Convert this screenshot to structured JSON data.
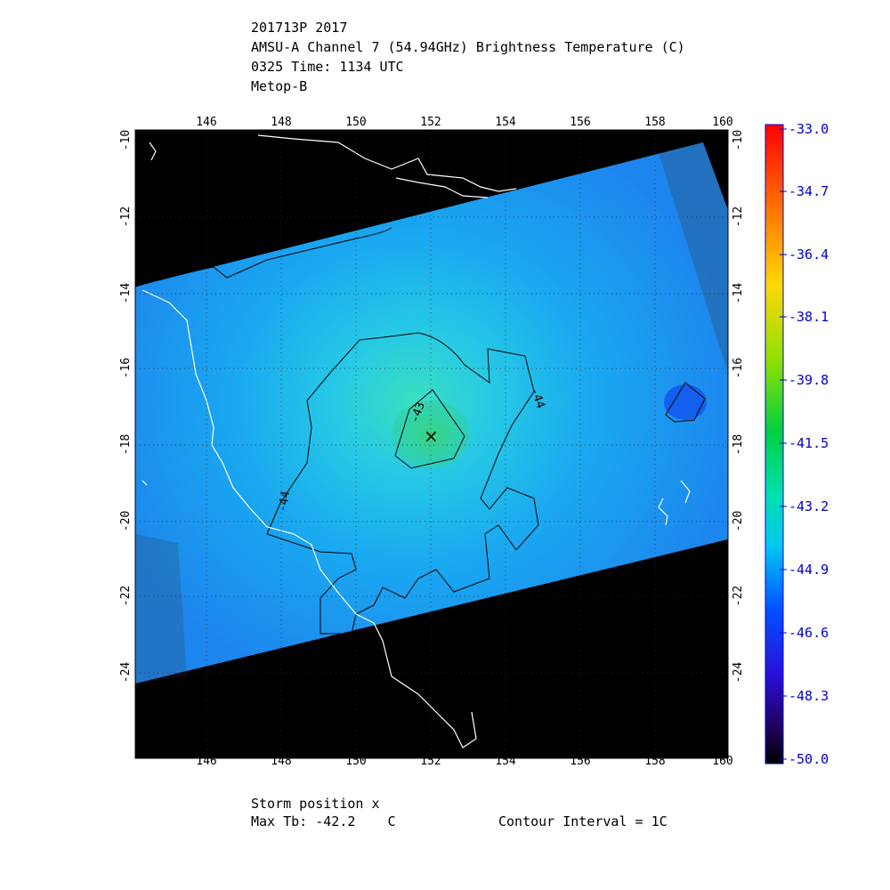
{
  "header": {
    "line1": "201713P 2017",
    "line2": "AMSU-A Channel 7 (54.94GHz) Brightness Temperature (C)",
    "line3": "0325 Time: 1134 UTC",
    "line4": "Metop-B"
  },
  "map": {
    "lon_labels": [
      "146",
      "148",
      "150",
      "152",
      "154",
      "156",
      "158",
      "160"
    ],
    "lat_labels": [
      "-10",
      "-12",
      "-14",
      "-16",
      "-18",
      "-20",
      "-22",
      "-24"
    ],
    "contour_labels": [
      "-43",
      "-44",
      "-44"
    ],
    "storm_marker": "×",
    "lon_range": [
      144,
      160
    ],
    "lat_range": [
      -26,
      -10
    ],
    "storm_lon": 152.1,
    "storm_lat": -17.8
  },
  "colorbar": {
    "labels": [
      "-33.0",
      "-34.7",
      "-36.4",
      "-38.1",
      "-39.8",
      "-41.5",
      "-43.2",
      "-44.9",
      "-46.6",
      "-48.3",
      "-50.0"
    ],
    "min": -50.0,
    "max": -33.0,
    "label_color": "#0000cc"
  },
  "footer": {
    "storm_position": "Storm position x",
    "max_tb": "Max Tb: -42.2    C",
    "contour_interval": "Contour Interval = 1C"
  },
  "colors": {
    "background": "#000000",
    "coastline": "#ffffff",
    "swath_base": "#1e8cf0",
    "warm_core": "#2fd68a",
    "contour": "#000000"
  }
}
